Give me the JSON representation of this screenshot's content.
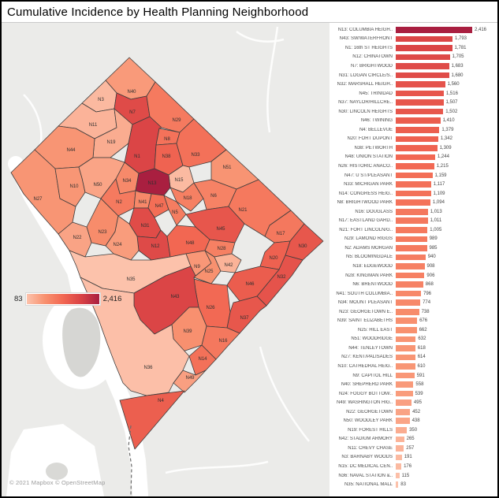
{
  "window": {
    "title": "Cumulative Incidence by Health Planning Neighborhood"
  },
  "legend": {
    "min_label": "83",
    "max_label": "2,416"
  },
  "attribution": "© 2021 Mapbox © OpenStreetMap",
  "color_scale": {
    "min": 83,
    "max": 2416,
    "stops": [
      "#fcc2ab",
      "#f8916f",
      "#f26752",
      "#d94245",
      "#a91f40"
    ]
  },
  "chart_data": {
    "type": "bar",
    "orientation": "horizontal",
    "title": "Cumulative Incidence by Health Planning Neighborhood",
    "xlim": [
      0,
      2416
    ],
    "grid": false,
    "rows": [
      {
        "id": "N13",
        "label": "N13: COLUMBIA HEIGH..",
        "value": 2416,
        "display": "2,416"
      },
      {
        "id": "N43",
        "label": "N43: SW/WATERFRONT",
        "value": 1793,
        "display": "1,793"
      },
      {
        "id": "N1",
        "label": "N1: 16th ST HEIGHTS",
        "value": 1781,
        "display": "1,781"
      },
      {
        "id": "N12",
        "label": "N12: CHINATOWN",
        "value": 1705,
        "display": "1,705"
      },
      {
        "id": "N7",
        "label": "N7: BRIGHTWOOD",
        "value": 1683,
        "display": "1,683"
      },
      {
        "id": "N31",
        "label": "N31: LOGAN CIRCLE/S..",
        "value": 1680,
        "display": "1,680"
      },
      {
        "id": "N32",
        "label": "N32: MARSHALL HEIGH..",
        "value": 1560,
        "display": "1,560"
      },
      {
        "id": "N45",
        "label": "N45: TRINIDAD",
        "value": 1516,
        "display": "1,516"
      },
      {
        "id": "N37",
        "label": "N37: NAYLOR/HILLCRE..",
        "value": 1507,
        "display": "1,507"
      },
      {
        "id": "N30",
        "label": "N30: LINCOLN HEIGHTS",
        "value": 1502,
        "display": "1,502"
      },
      {
        "id": "N46",
        "label": "N46: TWINING",
        "value": 1410,
        "display": "1,410"
      },
      {
        "id": "N4",
        "label": "N4: BELLEVUE",
        "value": 1379,
        "display": "1,379"
      },
      {
        "id": "N20",
        "label": "N20: FORT DUPONT",
        "value": 1342,
        "display": "1,342"
      },
      {
        "id": "N38",
        "label": "N38: PETWORTH",
        "value": 1309,
        "display": "1,309"
      },
      {
        "id": "N48",
        "label": "N48: UNION STATION",
        "value": 1244,
        "display": "1,244"
      },
      {
        "id": "N26",
        "label": "N26: HISTORIC ANACO..",
        "value": 1215,
        "display": "1,215"
      },
      {
        "id": "N47",
        "label": "N47: U ST/PLEASANT",
        "value": 1159,
        "display": "1,159"
      },
      {
        "id": "N33",
        "label": "N33: MICHIGAN PARK",
        "value": 1117,
        "display": "1,117"
      },
      {
        "id": "N14",
        "label": "N14: CONGRESS HEIG..",
        "value": 1109,
        "display": "1,109"
      },
      {
        "id": "N8",
        "label": "N8: BRIGHTWOOD PARK",
        "value": 1094,
        "display": "1,094"
      },
      {
        "id": "N16",
        "label": "N16: DOUGLASS",
        "value": 1013,
        "display": "1,013"
      },
      {
        "id": "N17",
        "label": "N17: EASTLAND GARD..",
        "value": 1011,
        "display": "1,011"
      },
      {
        "id": "N21",
        "label": "N21: FORT LINCOLN/G..",
        "value": 1005,
        "display": "1,005"
      },
      {
        "id": "N29",
        "label": "N29: LAMOND RIGGS",
        "value": 989,
        "display": "989"
      },
      {
        "id": "N2",
        "label": "N2: ADAMS MORGAN",
        "value": 985,
        "display": "985"
      },
      {
        "id": "N5",
        "label": "N5: BLOOMINGDALE",
        "value": 940,
        "display": "940"
      },
      {
        "id": "N18",
        "label": "N18: EDGEWOOD",
        "value": 908,
        "display": "908"
      },
      {
        "id": "N28",
        "label": "N28: KINGMAN PARK",
        "value": 906,
        "display": "906"
      },
      {
        "id": "N6",
        "label": "N6: BRENTWOOD",
        "value": 868,
        "display": "868"
      },
      {
        "id": "N41",
        "label": "N41: SOUTH COLUMBIA..",
        "value": 796,
        "display": "796"
      },
      {
        "id": "N34",
        "label": "N34: MOUNT PLEASANT",
        "value": 774,
        "display": "774"
      },
      {
        "id": "N23",
        "label": "N23: GEORGETOWN E..",
        "value": 738,
        "display": "738"
      },
      {
        "id": "N39",
        "label": "N39: SAINT ELIZABETHS",
        "value": 676,
        "display": "676"
      },
      {
        "id": "N25",
        "label": "N25: HILL EAST",
        "value": 662,
        "display": "662"
      },
      {
        "id": "N51",
        "label": "N51: WOODRIDGE",
        "value": 632,
        "display": "632"
      },
      {
        "id": "N44",
        "label": "N44: TENLEYTOWN",
        "value": 618,
        "display": "618"
      },
      {
        "id": "N27",
        "label": "N27: KENT/PALISADES",
        "value": 614,
        "display": "614"
      },
      {
        "id": "N10",
        "label": "N10: CATHEDRAL HEIG..",
        "value": 610,
        "display": "610"
      },
      {
        "id": "N9",
        "label": "N9: CAPITOL HILL",
        "value": 591,
        "display": "591"
      },
      {
        "id": "N40",
        "label": "N40: SHEPHERD PARK",
        "value": 558,
        "display": "558"
      },
      {
        "id": "N24",
        "label": "N24: FOGGY BOTTOM/..",
        "value": 539,
        "display": "539"
      },
      {
        "id": "N49",
        "label": "N49: WASHINGTON HIG..",
        "value": 495,
        "display": "495"
      },
      {
        "id": "N22",
        "label": "N22: GEORGETOWN",
        "value": 452,
        "display": "452"
      },
      {
        "id": "N50",
        "label": "N50: WOODLEY PARK",
        "value": 438,
        "display": "438"
      },
      {
        "id": "N19",
        "label": "N19: FOREST HILLS",
        "value": 350,
        "display": "350"
      },
      {
        "id": "N42",
        "label": "N42: STADIUM ARMORY",
        "value": 265,
        "display": "265"
      },
      {
        "id": "N11",
        "label": "N11: CHEVY CHASE",
        "value": 257,
        "display": "257"
      },
      {
        "id": "N3",
        "label": "N3: BARNABY WOODS",
        "value": 191,
        "display": "191"
      },
      {
        "id": "N15",
        "label": "N15: DC MEDICAL CEN..",
        "value": 176,
        "display": "176"
      },
      {
        "id": "N36",
        "label": "N36: NAVAL STATION &..",
        "value": 115,
        "display": "115"
      },
      {
        "id": "N35",
        "label": "N35: NATIONAL MALL",
        "value": 83,
        "display": "83"
      }
    ]
  }
}
